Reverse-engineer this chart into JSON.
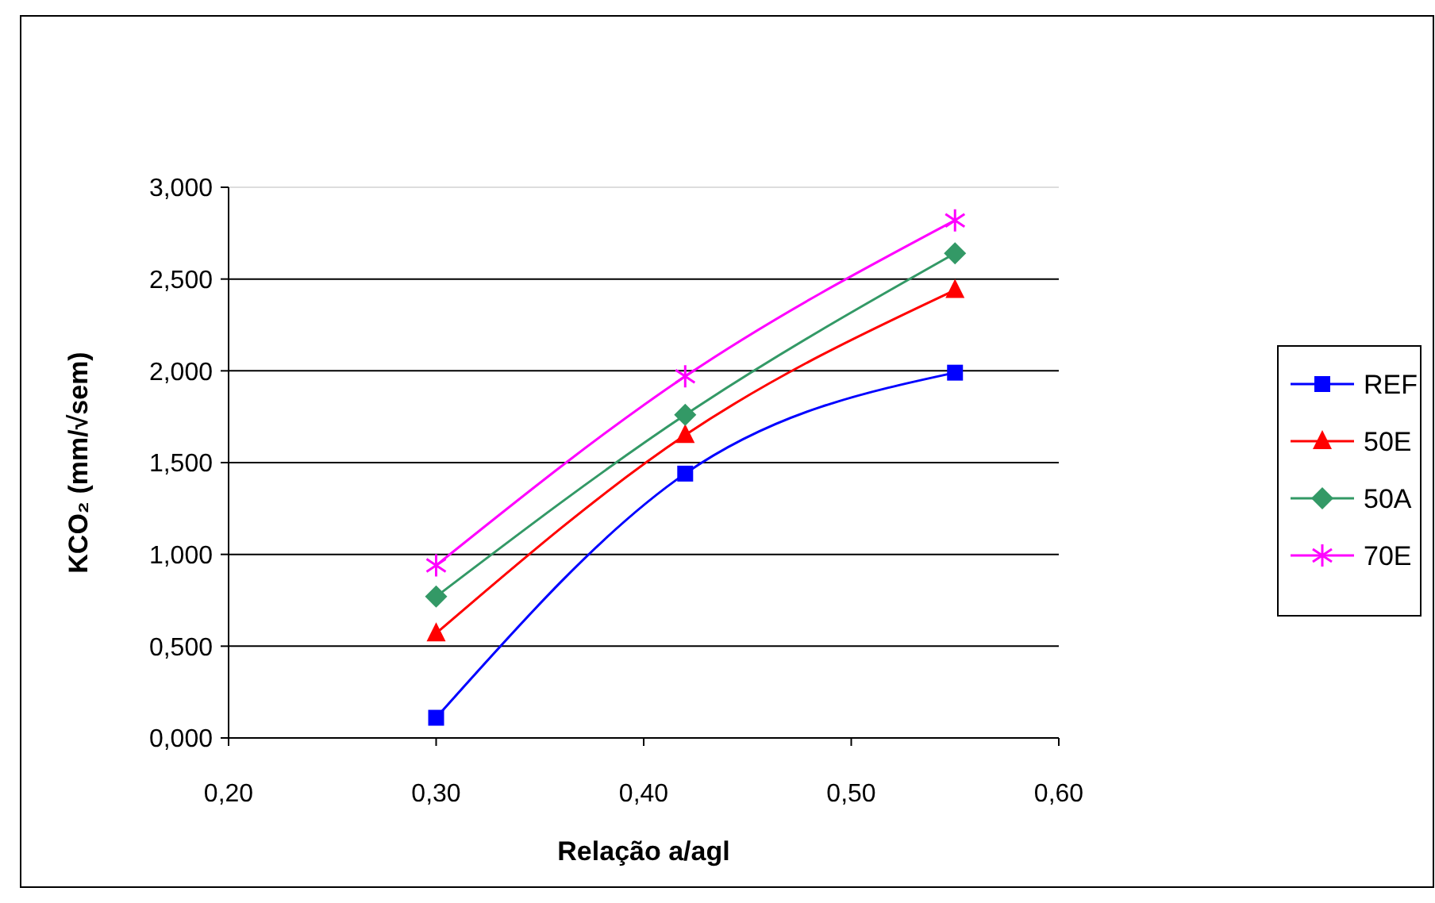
{
  "chart_data": {
    "type": "line",
    "xlabel": "Relação a/agl",
    "ylabel": "KCO₂ (mm/√sem)",
    "x": [
      0.3,
      0.42,
      0.55
    ],
    "series": [
      {
        "name": "REF",
        "color": "#0000ff",
        "marker": "square",
        "values": [
          0.11,
          1.44,
          1.99
        ]
      },
      {
        "name": "50E",
        "color": "#ff0000",
        "marker": "triangle",
        "values": [
          0.57,
          1.65,
          2.44
        ]
      },
      {
        "name": "50A",
        "color": "#339966",
        "marker": "diamond",
        "values": [
          0.77,
          1.76,
          2.64
        ]
      },
      {
        "name": "70E",
        "color": "#ff00ff",
        "marker": "cross",
        "values": [
          0.94,
          1.97,
          2.82
        ]
      }
    ],
    "xlim": [
      0.2,
      0.6
    ],
    "xticks": [
      {
        "value": 0.2,
        "label": "0,20"
      },
      {
        "value": 0.3,
        "label": "0,30"
      },
      {
        "value": 0.4,
        "label": "0,40"
      },
      {
        "value": 0.5,
        "label": "0,50"
      },
      {
        "value": 0.6,
        "label": "0,60"
      }
    ],
    "ylim": [
      0,
      3
    ],
    "yticks": [
      {
        "value": 0,
        "label": "0,000"
      },
      {
        "value": 0.5,
        "label": "0,500"
      },
      {
        "value": 1,
        "label": "1,000"
      },
      {
        "value": 1.5,
        "label": "1,500"
      },
      {
        "value": 2,
        "label": "2,000"
      },
      {
        "value": 2.5,
        "label": "2,500"
      },
      {
        "value": 3,
        "label": "3,000"
      }
    ],
    "grid": "y",
    "legend": "right",
    "line_style": "solid"
  }
}
